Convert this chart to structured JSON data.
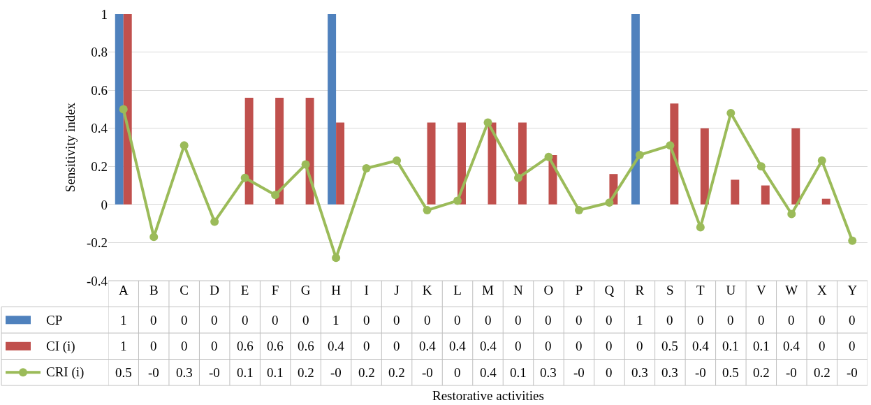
{
  "chart_data": {
    "type": "bar",
    "annotations": [
      "Restorative activities"
    ],
    "ylabel": "Sensitivity index",
    "categories": [
      "A",
      "B",
      "C",
      "D",
      "E",
      "F",
      "G",
      "H",
      "I",
      "J",
      "K",
      "L",
      "M",
      "N",
      "O",
      "P",
      "Q",
      "R",
      "S",
      "T",
      "U",
      "V",
      "W",
      "X",
      "Y"
    ],
    "series": [
      {
        "name": "CP",
        "color": "#4f81bd",
        "values": [
          1,
          0,
          0,
          0,
          0,
          0,
          0,
          1,
          0,
          0,
          0,
          0,
          0,
          0,
          0,
          0,
          0,
          1,
          0,
          0,
          0,
          0,
          0,
          0,
          0
        ],
        "value_labels": [
          "1",
          "0",
          "0",
          "0",
          "0",
          "0",
          "0",
          "1",
          "0",
          "0",
          "0",
          "0",
          "0",
          "0",
          "0",
          "0",
          "0",
          "1",
          "0",
          "0",
          "0",
          "0",
          "0",
          "0",
          "0"
        ]
      },
      {
        "name": "CI (i)",
        "color": "#c0504d",
        "values": [
          1,
          0,
          0,
          0,
          0.56,
          0.56,
          0.56,
          0.43,
          0,
          0,
          0.43,
          0.43,
          0.43,
          0.43,
          0.26,
          0,
          0.16,
          0,
          0.53,
          0.4,
          0.13,
          0.1,
          0.4,
          0.03,
          0
        ],
        "value_labels": [
          "1",
          "0",
          "0",
          "0",
          "0.6",
          "0.6",
          "0.6",
          "0.4",
          "0",
          "0",
          "0.4",
          "0.4",
          "0.4",
          "0",
          "0",
          "0",
          "0",
          "0",
          "0.5",
          "0.4",
          "0.1",
          "0.1",
          "0.4",
          "0",
          "0"
        ]
      },
      {
        "name": "CRI (i)",
        "type": "line",
        "color": "#9bbb59",
        "marker": "circle",
        "values": [
          0.5,
          -0.17,
          0.31,
          -0.09,
          0.14,
          0.05,
          0.21,
          -0.28,
          0.19,
          0.23,
          -0.03,
          0.02,
          0.43,
          0.14,
          0.25,
          -0.03,
          0.01,
          0.26,
          0.31,
          -0.12,
          0.48,
          0.2,
          -0.05,
          0.23,
          -0.19
        ],
        "value_labels": [
          "0.5",
          "-0",
          "0.3",
          "-0",
          "0.1",
          "0.1",
          "0.2",
          "-0",
          "0.2",
          "0.2",
          "-0",
          "0",
          "0.4",
          "0.1",
          "0.3",
          "-0",
          "0",
          "0.3",
          "0.3",
          "-0",
          "0.5",
          "0.2",
          "-0",
          "0.2",
          "-0"
        ]
      }
    ],
    "ylim": [
      -0.4,
      1
    ],
    "yticks": [
      -0.4,
      -0.2,
      0,
      0.2,
      0.4,
      0.6,
      0.8,
      1
    ],
    "grid": "y",
    "legend": "bottom left"
  }
}
